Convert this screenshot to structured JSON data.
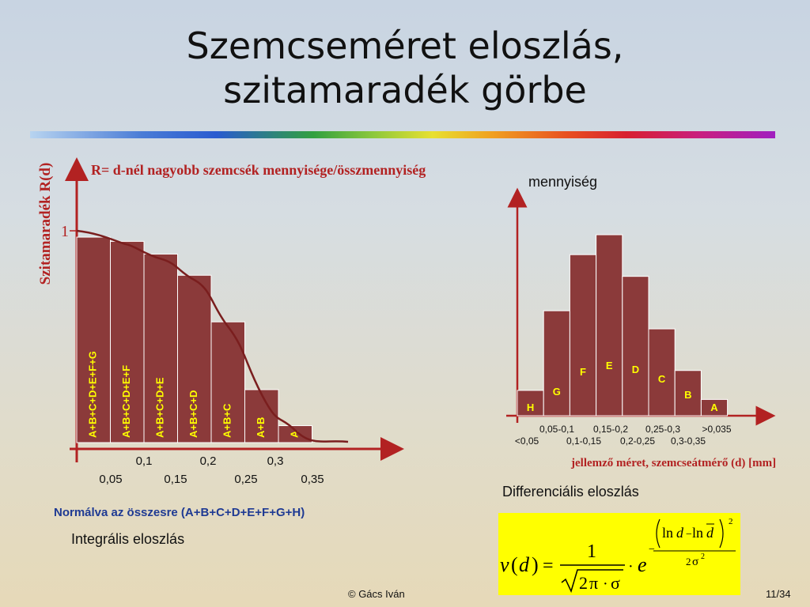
{
  "title": {
    "line1": "Szemcseméret eloszlás,",
    "line2": "szitamaradék görbe"
  },
  "integral_chart": {
    "y_axis_label": "Szitamaradék R(d)",
    "header": "R= d-nél nagyobb szemcsék mennyisége/összmennyiség",
    "y_tick": "1",
    "bars": [
      {
        "label": "A+B+C+D+E+F+G",
        "value": 0.97
      },
      {
        "label": "A+B+C+D+E+F",
        "value": 0.95
      },
      {
        "label": "A+B+C+D+E",
        "value": 0.89
      },
      {
        "label": "A+B+C+D",
        "value": 0.79
      },
      {
        "label": "A+B+C",
        "value": 0.57
      },
      {
        "label": "A+B",
        "value": 0.25
      },
      {
        "label": "A",
        "value": 0.08
      }
    ],
    "x_ticks_upper": [
      "0,1",
      "0,2",
      "0,3"
    ],
    "x_ticks_lower": [
      "0,05",
      "0,15",
      "0,25",
      "0,35"
    ],
    "normalized_note": "Normálva  az összesre (A+B+C+D+E+F+G+H)",
    "caption": "Integrális eloszlás"
  },
  "differential_chart": {
    "y_axis_label": "mennyiség",
    "x_axis_label": "jellemző méret, szemcseátmérő (d) [mm]",
    "bars": [
      {
        "label": "H",
        "value": 0.14
      },
      {
        "label": "G",
        "value": 0.58
      },
      {
        "label": "F",
        "value": 0.89
      },
      {
        "label": "E",
        "value": 1.0
      },
      {
        "label": "D",
        "value": 0.77
      },
      {
        "label": "C",
        "value": 0.48
      },
      {
        "label": "B",
        "value": 0.25
      },
      {
        "label": "A",
        "value": 0.09
      }
    ],
    "x_ticks_upper": [
      "0,05-0,1",
      "0,15-0,2",
      "0,25-0,3",
      ">0,035"
    ],
    "x_ticks_lower": [
      "<0,05",
      "0,1-0,15",
      "0,2-0,25",
      "0,3-0,35"
    ],
    "caption": "Differenciális eloszlás"
  },
  "formula": {
    "lhs_v": "v",
    "lhs_d": "d",
    "eq": "=",
    "numerator": "1",
    "sqrt_two": "2",
    "pi": "π",
    "dot": "·",
    "sigma": "σ",
    "e": "e",
    "exp_ln1": "ln",
    "exp_d": "d",
    "exp_minus": "−",
    "exp_ln2": "ln",
    "exp_dbar": "d",
    "exp_pow": "2",
    "exp_den_2": "2",
    "exp_den_sigma": "σ",
    "exp_den_pow": "2",
    "exp_neg": "−"
  },
  "colors": {
    "bar_fill": "#8b3a3a",
    "bar_stroke": "#ffffff",
    "bar_text": "#ffff00",
    "curve": "#7a1e1e",
    "axis": "#b22222",
    "formula_bg": "#ffff00"
  },
  "footer": {
    "author": "© Gács Iván",
    "page": "11/34"
  }
}
